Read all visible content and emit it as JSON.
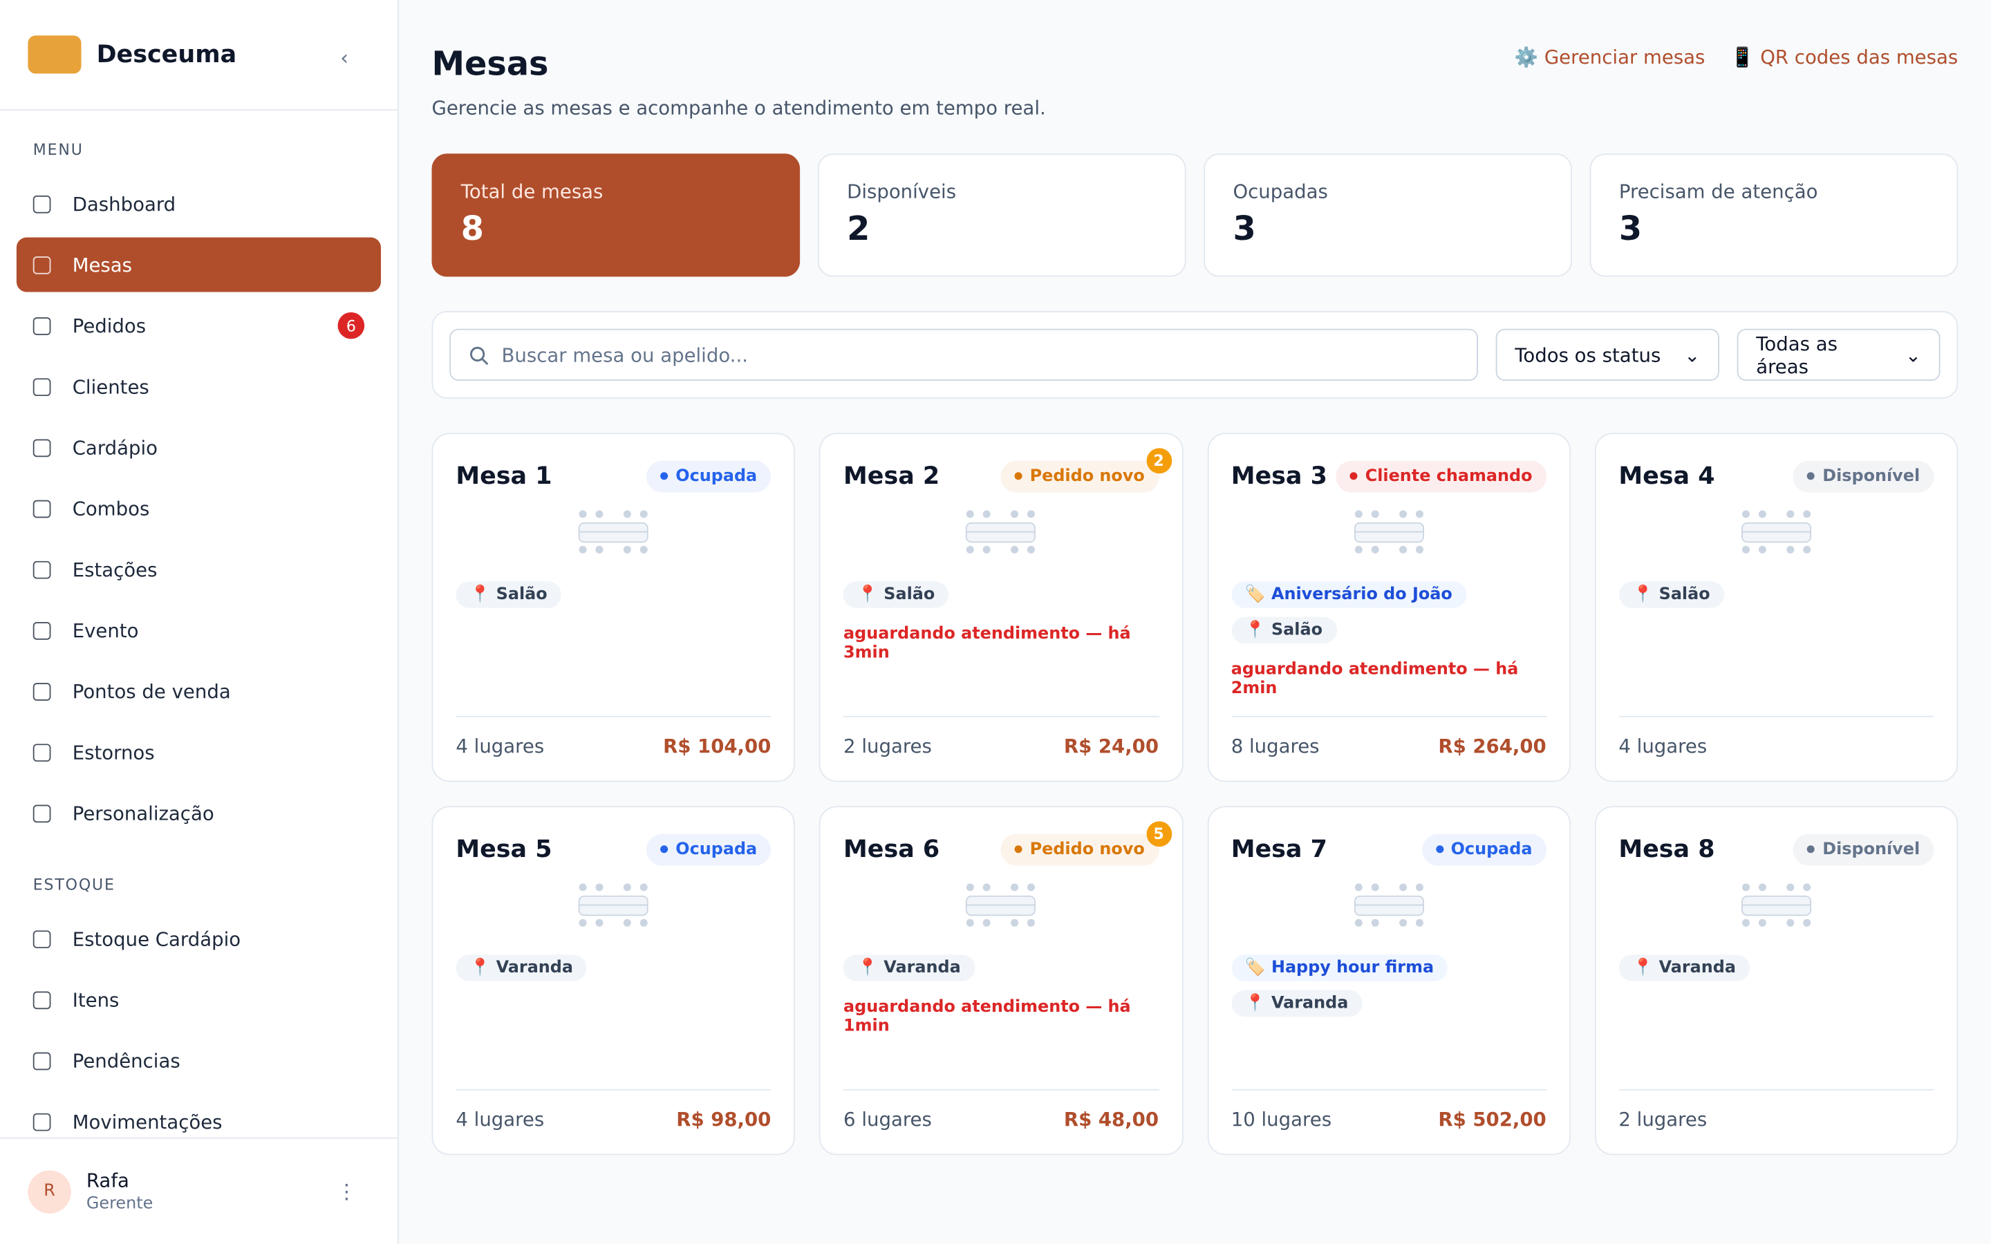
{
  "sidebar": {
    "brand": "Desceuma",
    "menu_label": "MENU",
    "menu": [
      {
        "label": "Dashboard"
      },
      {
        "label": "Mesas",
        "active": true
      },
      {
        "label": "Pedidos",
        "badge": "6"
      },
      {
        "label": "Clientes"
      },
      {
        "label": "Cardápio"
      },
      {
        "label": "Combos"
      },
      {
        "label": "Estações"
      },
      {
        "label": "Evento"
      },
      {
        "label": "Pontos de venda"
      },
      {
        "label": "Estornos"
      },
      {
        "label": "Personalização"
      }
    ],
    "stock_label": "ESTOQUE",
    "stock": [
      {
        "label": "Estoque Cardápio"
      },
      {
        "label": "Itens"
      },
      {
        "label": "Pendências"
      },
      {
        "label": "Movimentações"
      }
    ],
    "user": {
      "initial": "R",
      "name": "Rafa",
      "role": "Gerente"
    }
  },
  "header": {
    "title": "Mesas",
    "subtitle": "Gerencie as mesas e acompanhe o atendimento em tempo real.",
    "actions": [
      "⚙️ Gerenciar mesas",
      "📱 QR codes das mesas"
    ]
  },
  "stats": [
    {
      "label": "Total de mesas",
      "value": "8"
    },
    {
      "label": "Disponíveis",
      "value": "2"
    },
    {
      "label": "Ocupadas",
      "value": "3"
    },
    {
      "label": "Precisam de atenção",
      "value": "3"
    }
  ],
  "filters": {
    "search_placeholder": "Buscar mesa ou apelido...",
    "status": "Todos os status",
    "area": "Todas as áreas"
  },
  "tables": [
    {
      "name": "Mesa 1",
      "status": "Ocupada",
      "status_color": "#2563eb",
      "area": "📍 Salão",
      "seats": "4 lugares",
      "total": "R$ 104,00"
    },
    {
      "name": "Mesa 2",
      "status": "Pedido novo",
      "status_color": "#d97706",
      "badge": "2",
      "area": "📍 Salão",
      "alert": "aguardando atendimento — há 3min",
      "seats": "2 lugares",
      "total": "R$ 24,00"
    },
    {
      "name": "Mesa 3",
      "status": "Cliente chamando",
      "status_color": "#dc2626",
      "tag": "🏷️ Aniversário do João",
      "area": "📍 Salão",
      "alert": "aguardando atendimento — há 2min",
      "seats": "8 lugares",
      "total": "R$ 264,00"
    },
    {
      "name": "Mesa 4",
      "status": "Disponível",
      "status_color": "#64748b",
      "area": "📍 Salão",
      "seats": "4 lugares"
    },
    {
      "name": "Mesa 5",
      "status": "Ocupada",
      "status_color": "#2563eb",
      "area": "📍 Varanda",
      "seats": "4 lugares",
      "total": "R$ 98,00"
    },
    {
      "name": "Mesa 6",
      "status": "Pedido novo",
      "status_color": "#d97706",
      "badge": "5",
      "area": "📍 Varanda",
      "alert": "aguardando atendimento — há 1min",
      "seats": "6 lugares",
      "total": "R$ 48,00"
    },
    {
      "name": "Mesa 7",
      "status": "Ocupada",
      "status_color": "#2563eb",
      "tag": "🏷️ Happy hour firma",
      "area": "📍 Varanda",
      "seats": "10 lugares",
      "total": "R$ 502,00"
    },
    {
      "name": "Mesa 8",
      "status": "Disponível",
      "status_color": "#64748b",
      "area": "📍 Varanda",
      "seats": "2 lugares"
    }
  ]
}
